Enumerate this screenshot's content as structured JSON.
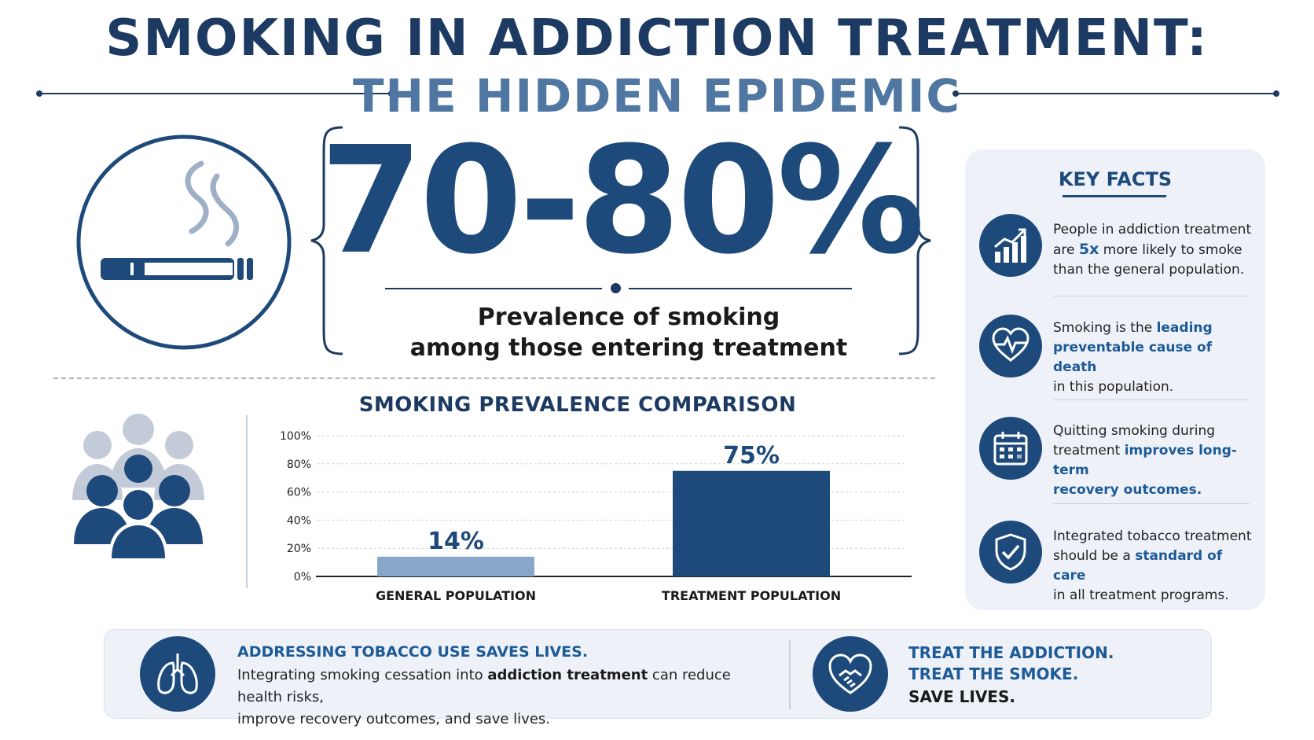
{
  "header": {
    "title": "SMOKING IN ADDICTION TREATMENT:",
    "subtitle": "THE HIDDEN EPIDEMIC"
  },
  "stat": {
    "value": "70-80%",
    "caption_line1": "Prevalence of smoking",
    "caption_line2": "among those entering treatment"
  },
  "chart_data": {
    "type": "bar",
    "title": "SMOKING PREVALENCE COMPARISON",
    "categories": [
      "GENERAL POPULATION",
      "TREATMENT POPULATION"
    ],
    "values": [
      14,
      75
    ],
    "value_labels": [
      "14%",
      "75%"
    ],
    "y_ticks": [
      "0%",
      "20%",
      "40%",
      "60%",
      "80%",
      "100%"
    ],
    "ylim": [
      0,
      100
    ],
    "grid": true,
    "colors": [
      "#87a6c9",
      "#1d4a7b"
    ]
  },
  "key_facts": {
    "title": "KEY FACTS",
    "items": [
      {
        "icon": "growth-chart-icon",
        "line1": "People in addiction treatment",
        "pre": "are ",
        "hl": "5x",
        "post": " more likely to smoke",
        "line3": "than the general population."
      },
      {
        "icon": "heartbeat-icon",
        "line1_pre": "Smoking is the ",
        "line1_hl": "leading",
        "line2_hl": "preventable cause of death",
        "line3": "in this population."
      },
      {
        "icon": "calendar-icon",
        "line1": "Quitting smoking during",
        "line2_pre": "treatment ",
        "line2_hl": "improves long-term",
        "line3_hl": "recovery outcomes."
      },
      {
        "icon": "shield-check-icon",
        "line1": "Integrated tobacco treatment",
        "line2_pre": "should be a ",
        "line2_hl": "standard of care",
        "line3": "in all treatment programs."
      }
    ]
  },
  "banner": {
    "heading": "ADDRESSING TOBACCO USE SAVES LIVES.",
    "body_pre": "Integrating smoking cessation into ",
    "body_hl": "addiction treatment",
    "body_post": " can reduce health risks,",
    "body_line2": "improve recovery outcomes, and save lives.",
    "cta_line1": "TREAT THE ADDICTION.",
    "cta_line2": "TREAT THE SMOKE.",
    "cta_line3": "SAVE LIVES."
  },
  "colors": {
    "navy": "#1d3b62",
    "accent": "#1d4a7b",
    "light_blue": "#87a6c9",
    "panel": "#eef2f8"
  }
}
